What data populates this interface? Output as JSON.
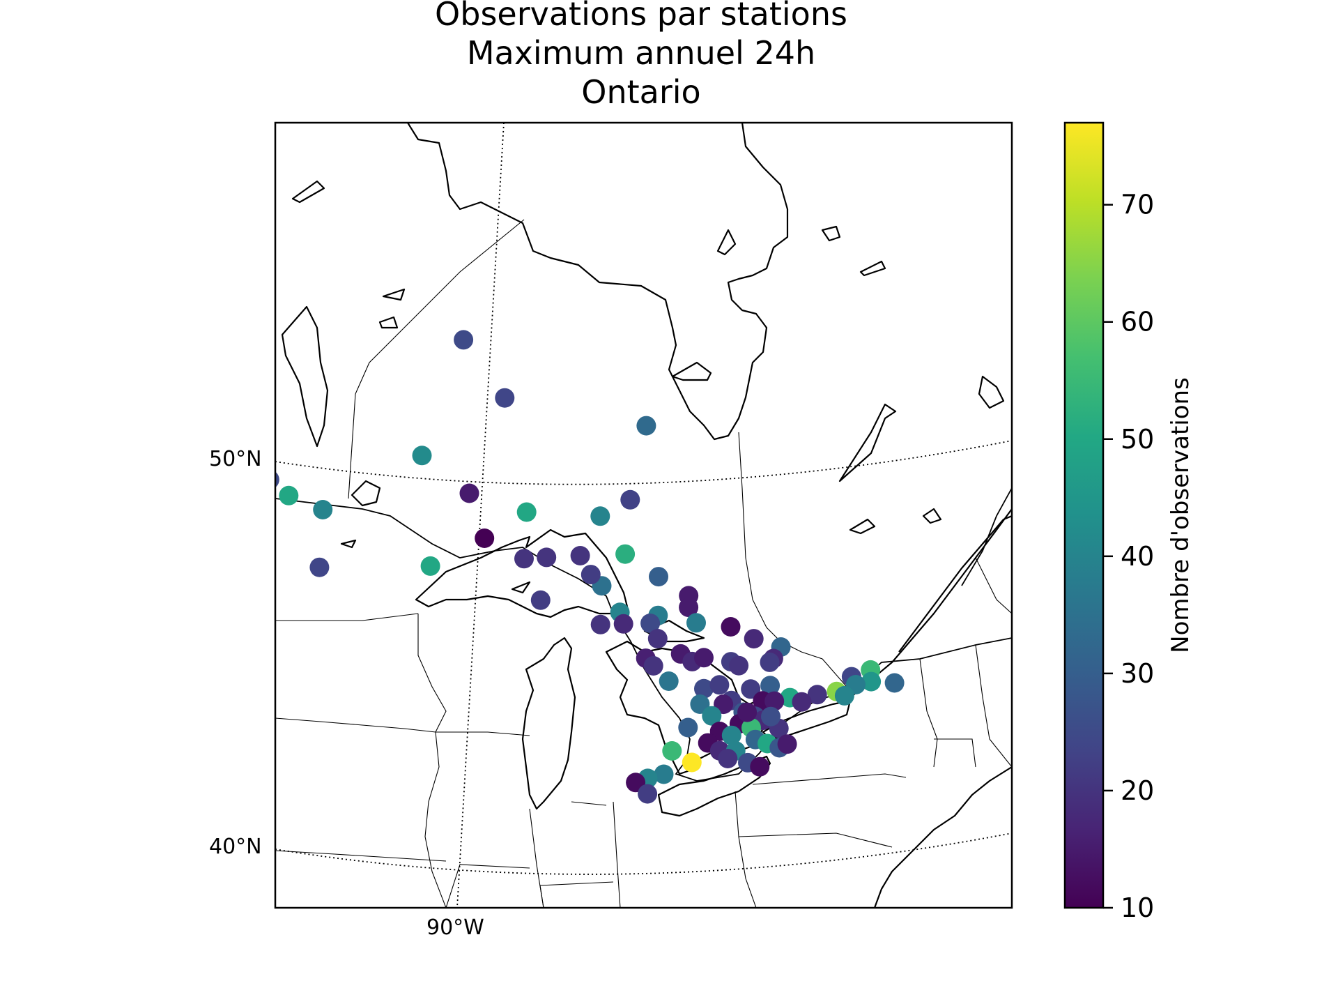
{
  "title": {
    "line1": "Observations par stations",
    "line2": "Maximum annuel 24h",
    "line3": "Ontario"
  },
  "map": {
    "lat_labels": [
      "50°N",
      "40°N"
    ],
    "lon_labels": [
      "90°W"
    ],
    "extent": {
      "lon": [
        -98,
        -72
      ],
      "lat": [
        39,
        57
      ]
    }
  },
  "colorbar": {
    "label": "Nombre d'observations",
    "colormap": "viridis",
    "range": [
      10,
      77
    ],
    "ticks": [
      "10",
      "20",
      "30",
      "40",
      "50",
      "60",
      "70"
    ],
    "tick_values": [
      10,
      20,
      30,
      40,
      50,
      60,
      70
    ]
  },
  "chart_data": {
    "type": "scatter",
    "value_range": [
      10,
      77
    ],
    "points": [
      {
        "lon": -88.9,
        "lat": 53.8,
        "v": 25
      },
      {
        "lon": -87.6,
        "lat": 52.2,
        "v": 24
      },
      {
        "lon": -94.0,
        "lat": 50.8,
        "v": 25
      },
      {
        "lon": -93.4,
        "lat": 50.3,
        "v": 50
      },
      {
        "lon": -89.8,
        "lat": 50.9,
        "v": 42
      },
      {
        "lon": -83.6,
        "lat": 51.3,
        "v": 33
      },
      {
        "lon": -94.7,
        "lat": 49.6,
        "v": 42
      },
      {
        "lon": -94.2,
        "lat": 49.5,
        "v": 24
      },
      {
        "lon": -92.4,
        "lat": 49.8,
        "v": 40
      },
      {
        "lon": -88.4,
        "lat": 49.8,
        "v": 15
      },
      {
        "lon": -86.8,
        "lat": 49.2,
        "v": 50
      },
      {
        "lon": -84.0,
        "lat": 49.4,
        "v": 23
      },
      {
        "lon": -84.8,
        "lat": 49.0,
        "v": 40
      },
      {
        "lon": -87.9,
        "lat": 48.6,
        "v": 10
      },
      {
        "lon": -92.3,
        "lat": 48.3,
        "v": 24
      },
      {
        "lon": -89.3,
        "lat": 48.0,
        "v": 50
      },
      {
        "lon": -86.8,
        "lat": 48.0,
        "v": 20
      },
      {
        "lon": -86.2,
        "lat": 48.0,
        "v": 20
      },
      {
        "lon": -85.3,
        "lat": 48.0,
        "v": 20
      },
      {
        "lon": -84.1,
        "lat": 48.0,
        "v": 52
      },
      {
        "lon": -84.7,
        "lat": 47.2,
        "v": 35
      },
      {
        "lon": -85.0,
        "lat": 47.5,
        "v": 22
      },
      {
        "lon": -83.2,
        "lat": 47.4,
        "v": 30
      },
      {
        "lon": -86.3,
        "lat": 46.9,
        "v": 22
      },
      {
        "lon": -82.4,
        "lat": 46.9,
        "v": 15
      },
      {
        "lon": -82.4,
        "lat": 46.6,
        "v": 15
      },
      {
        "lon": -84.2,
        "lat": 46.5,
        "v": 40
      },
      {
        "lon": -83.2,
        "lat": 46.4,
        "v": 38
      },
      {
        "lon": -83.4,
        "lat": 46.2,
        "v": 25
      },
      {
        "lon": -82.2,
        "lat": 46.2,
        "v": 38
      },
      {
        "lon": -81.3,
        "lat": 46.1,
        "v": 12
      },
      {
        "lon": -80.7,
        "lat": 45.8,
        "v": 18
      },
      {
        "lon": -80.0,
        "lat": 45.6,
        "v": 32
      },
      {
        "lon": -80.2,
        "lat": 45.3,
        "v": 18
      },
      {
        "lon": -80.3,
        "lat": 45.2,
        "v": 22
      },
      {
        "lon": -77.7,
        "lat": 45.1,
        "v": 55
      },
      {
        "lon": -77.7,
        "lat": 44.8,
        "v": 45
      },
      {
        "lon": -77.1,
        "lat": 44.8,
        "v": 32
      },
      {
        "lon": -84.7,
        "lat": 46.2,
        "v": 20
      },
      {
        "lon": -84.1,
        "lat": 46.2,
        "v": 18
      },
      {
        "lon": -83.2,
        "lat": 45.8,
        "v": 20
      },
      {
        "lon": -83.5,
        "lat": 45.3,
        "v": 16
      },
      {
        "lon": -83.3,
        "lat": 45.1,
        "v": 20
      },
      {
        "lon": -82.6,
        "lat": 45.4,
        "v": 15
      },
      {
        "lon": -82.3,
        "lat": 45.2,
        "v": 18
      },
      {
        "lon": -82.0,
        "lat": 45.3,
        "v": 15
      },
      {
        "lon": -81.3,
        "lat": 45.2,
        "v": 22
      },
      {
        "lon": -81.1,
        "lat": 45.1,
        "v": 20
      },
      {
        "lon": -78.2,
        "lat": 44.9,
        "v": 24
      },
      {
        "lon": -78.1,
        "lat": 44.7,
        "v": 38
      },
      {
        "lon": -82.9,
        "lat": 44.7,
        "v": 36
      },
      {
        "lon": -82.0,
        "lat": 44.5,
        "v": 25
      },
      {
        "lon": -81.6,
        "lat": 44.6,
        "v": 22
      },
      {
        "lon": -80.8,
        "lat": 44.5,
        "v": 22
      },
      {
        "lon": -80.3,
        "lat": 44.6,
        "v": 30
      },
      {
        "lon": -79.8,
        "lat": 44.3,
        "v": 50
      },
      {
        "lon": -79.1,
        "lat": 44.4,
        "v": 20
      },
      {
        "lon": -78.6,
        "lat": 44.5,
        "v": 65
      },
      {
        "lon": -78.4,
        "lat": 44.4,
        "v": 40
      },
      {
        "lon": -79.5,
        "lat": 44.2,
        "v": 18
      },
      {
        "lon": -80.5,
        "lat": 44.2,
        "v": 12
      },
      {
        "lon": -80.2,
        "lat": 44.2,
        "v": 15
      },
      {
        "lon": -81.3,
        "lat": 44.2,
        "v": 22
      },
      {
        "lon": -82.1,
        "lat": 44.1,
        "v": 35
      },
      {
        "lon": -81.5,
        "lat": 44.1,
        "v": 15
      },
      {
        "lon": -81.8,
        "lat": 43.8,
        "v": 40
      },
      {
        "lon": -81.0,
        "lat": 43.9,
        "v": 28
      },
      {
        "lon": -80.7,
        "lat": 43.8,
        "v": 25
      },
      {
        "lon": -80.5,
        "lat": 43.7,
        "v": 18
      },
      {
        "lon": -81.1,
        "lat": 43.6,
        "v": 12
      },
      {
        "lon": -80.8,
        "lat": 43.5,
        "v": 55
      },
      {
        "lon": -80.1,
        "lat": 43.5,
        "v": 20
      },
      {
        "lon": -82.4,
        "lat": 43.5,
        "v": 30
      },
      {
        "lon": -81.6,
        "lat": 43.4,
        "v": 12
      },
      {
        "lon": -81.3,
        "lat": 43.3,
        "v": 40
      },
      {
        "lon": -80.7,
        "lat": 43.2,
        "v": 32
      },
      {
        "lon": -80.4,
        "lat": 43.1,
        "v": 50
      },
      {
        "lon": -80.1,
        "lat": 43.0,
        "v": 28
      },
      {
        "lon": -79.9,
        "lat": 43.1,
        "v": 15
      },
      {
        "lon": -81.9,
        "lat": 43.1,
        "v": 12
      },
      {
        "lon": -81.6,
        "lat": 42.9,
        "v": 18
      },
      {
        "lon": -81.2,
        "lat": 42.9,
        "v": 40
      },
      {
        "lon": -82.8,
        "lat": 42.9,
        "v": 55
      },
      {
        "lon": -82.3,
        "lat": 42.6,
        "v": 77
      },
      {
        "lon": -81.4,
        "lat": 42.7,
        "v": 20
      },
      {
        "lon": -80.9,
        "lat": 42.6,
        "v": 25
      },
      {
        "lon": -80.6,
        "lat": 42.5,
        "v": 12
      },
      {
        "lon": -83.0,
        "lat": 42.3,
        "v": 38
      },
      {
        "lon": -83.4,
        "lat": 42.2,
        "v": 40
      },
      {
        "lon": -83.7,
        "lat": 42.1,
        "v": 12
      },
      {
        "lon": -83.4,
        "lat": 41.8,
        "v": 22
      },
      {
        "lon": -80.9,
        "lat": 43.9,
        "v": 14
      },
      {
        "lon": -80.3,
        "lat": 43.8,
        "v": 26
      }
    ]
  }
}
